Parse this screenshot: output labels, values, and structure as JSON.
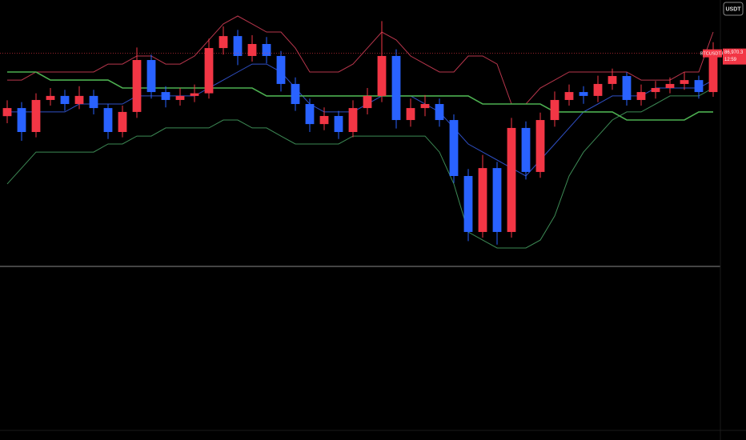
{
  "toolbar": {
    "currency_button": "USDT"
  },
  "chart_data": {
    "type": "candlestick",
    "symbol": "BTCUSDT.P",
    "last_price_label": "86,970.3",
    "countdown": "12:59",
    "up_color": "#f23645",
    "down_color": "#2962ff",
    "ylim": [
      75000,
      90000
    ],
    "open": [
      83400,
      83860,
      82500,
      84320,
      84550,
      84090,
      84550,
      83860,
      82500,
      83640,
      86590,
      84770,
      84320,
      84550,
      84700,
      87270,
      87950,
      86820,
      87500,
      86820,
      85230,
      84090,
      82950,
      83410,
      82500,
      83860,
      84550,
      86820,
      83180,
      83860,
      84090,
      83180,
      80000,
      76820,
      80450,
      76820,
      82730,
      80230,
      83180,
      84320,
      84770,
      84550,
      85230,
      85680,
      84320,
      84770,
      85000,
      85230,
      85450,
      84770
    ],
    "high": [
      84300,
      84200,
      84700,
      85000,
      84900,
      85100,
      84900,
      84100,
      84000,
      87300,
      86900,
      85100,
      85000,
      85200,
      87800,
      88500,
      88300,
      88000,
      87900,
      87100,
      85600,
      84400,
      83900,
      83700,
      84300,
      85000,
      88800,
      87200,
      84400,
      84600,
      84400,
      83500,
      80400,
      81200,
      80800,
      83300,
      83100,
      83600,
      84800,
      85200,
      85100,
      85700,
      86100,
      85900,
      85200,
      85400,
      85600,
      85900,
      85700,
      87600
    ],
    "low": [
      83000,
      82000,
      82200,
      84000,
      83700,
      83800,
      83500,
      82100,
      82200,
      83300,
      84400,
      83900,
      84000,
      84200,
      84400,
      86900,
      86300,
      86500,
      86400,
      84800,
      83700,
      82500,
      82600,
      82100,
      82200,
      83500,
      84200,
      82700,
      82800,
      83400,
      82800,
      79600,
      76300,
      76500,
      76100,
      76500,
      79800,
      79900,
      82800,
      84000,
      84100,
      84200,
      84900,
      84000,
      84000,
      84400,
      84700,
      84900,
      84400,
      84500
    ],
    "close": [
      83860,
      82500,
      84320,
      84550,
      84090,
      84550,
      83860,
      82500,
      83640,
      86590,
      84770,
      84320,
      84550,
      84700,
      87270,
      87950,
      86820,
      87500,
      86820,
      85230,
      84090,
      82950,
      83410,
      82500,
      83860,
      84550,
      86820,
      83180,
      83860,
      84090,
      83180,
      80000,
      76820,
      80450,
      76820,
      82730,
      80230,
      83180,
      84320,
      84770,
      84550,
      85230,
      85680,
      84320,
      84770,
      85000,
      85230,
      85450,
      84770,
      86970.3
    ],
    "overlays": [
      {
        "color": "#b8364c",
        "values": [
          85450,
          85450,
          85910,
          85910,
          85910,
          85910,
          85910,
          86360,
          86360,
          86820,
          86820,
          86360,
          86360,
          86820,
          87730,
          88640,
          89090,
          88640,
          88180,
          88180,
          87270,
          85910,
          85910,
          85910,
          86360,
          87270,
          88180,
          87730,
          86820,
          86360,
          85910,
          85910,
          86820,
          86820,
          86360,
          84090,
          84090,
          85000,
          85450,
          85910,
          85910,
          85910,
          85910,
          85910,
          85450,
          85450,
          85450,
          85910,
          85910,
          88180
        ]
      },
      {
        "color": "#3d8a55",
        "values": [
          79550,
          80450,
          81360,
          81360,
          81360,
          81360,
          81360,
          81820,
          81820,
          82270,
          82270,
          82730,
          82730,
          82730,
          82730,
          83180,
          83180,
          82730,
          82730,
          82270,
          81820,
          81820,
          81820,
          81820,
          82270,
          82270,
          82270,
          82270,
          82270,
          82270,
          81360,
          79550,
          76820,
          76360,
          75910,
          75910,
          75910,
          76360,
          77730,
          80000,
          81360,
          82270,
          83180,
          83640,
          83640,
          84090,
          84550,
          84550,
          84550,
          85000
        ]
      },
      {
        "color": "#2f4fc4",
        "values": [
          83640,
          83640,
          83640,
          83640,
          83640,
          84090,
          84090,
          84090,
          84090,
          84550,
          84550,
          84550,
          84550,
          84550,
          85000,
          85450,
          85910,
          86360,
          86360,
          85910,
          85000,
          84090,
          83640,
          83640,
          83640,
          84090,
          84550,
          84550,
          84550,
          84090,
          83640,
          82730,
          81820,
          81360,
          80910,
          80450,
          80000,
          80910,
          81820,
          82730,
          83640,
          84090,
          84550,
          84550,
          84550,
          85000,
          85000,
          85000,
          85000,
          85450
        ]
      },
      {
        "color": "#4caf50",
        "values": [
          85910,
          85910,
          85910,
          85450,
          85450,
          85450,
          85450,
          85450,
          85000,
          85000,
          85000,
          85000,
          85000,
          85000,
          85000,
          85000,
          85000,
          85000,
          84550,
          84550,
          84550,
          84550,
          84550,
          84550,
          84550,
          84550,
          84550,
          84550,
          84550,
          84550,
          84550,
          84550,
          84550,
          84090,
          84090,
          84090,
          84090,
          84090,
          83640,
          83640,
          83640,
          83640,
          83640,
          83180,
          83180,
          83180,
          83180,
          83180,
          83640,
          83640
        ]
      }
    ]
  }
}
